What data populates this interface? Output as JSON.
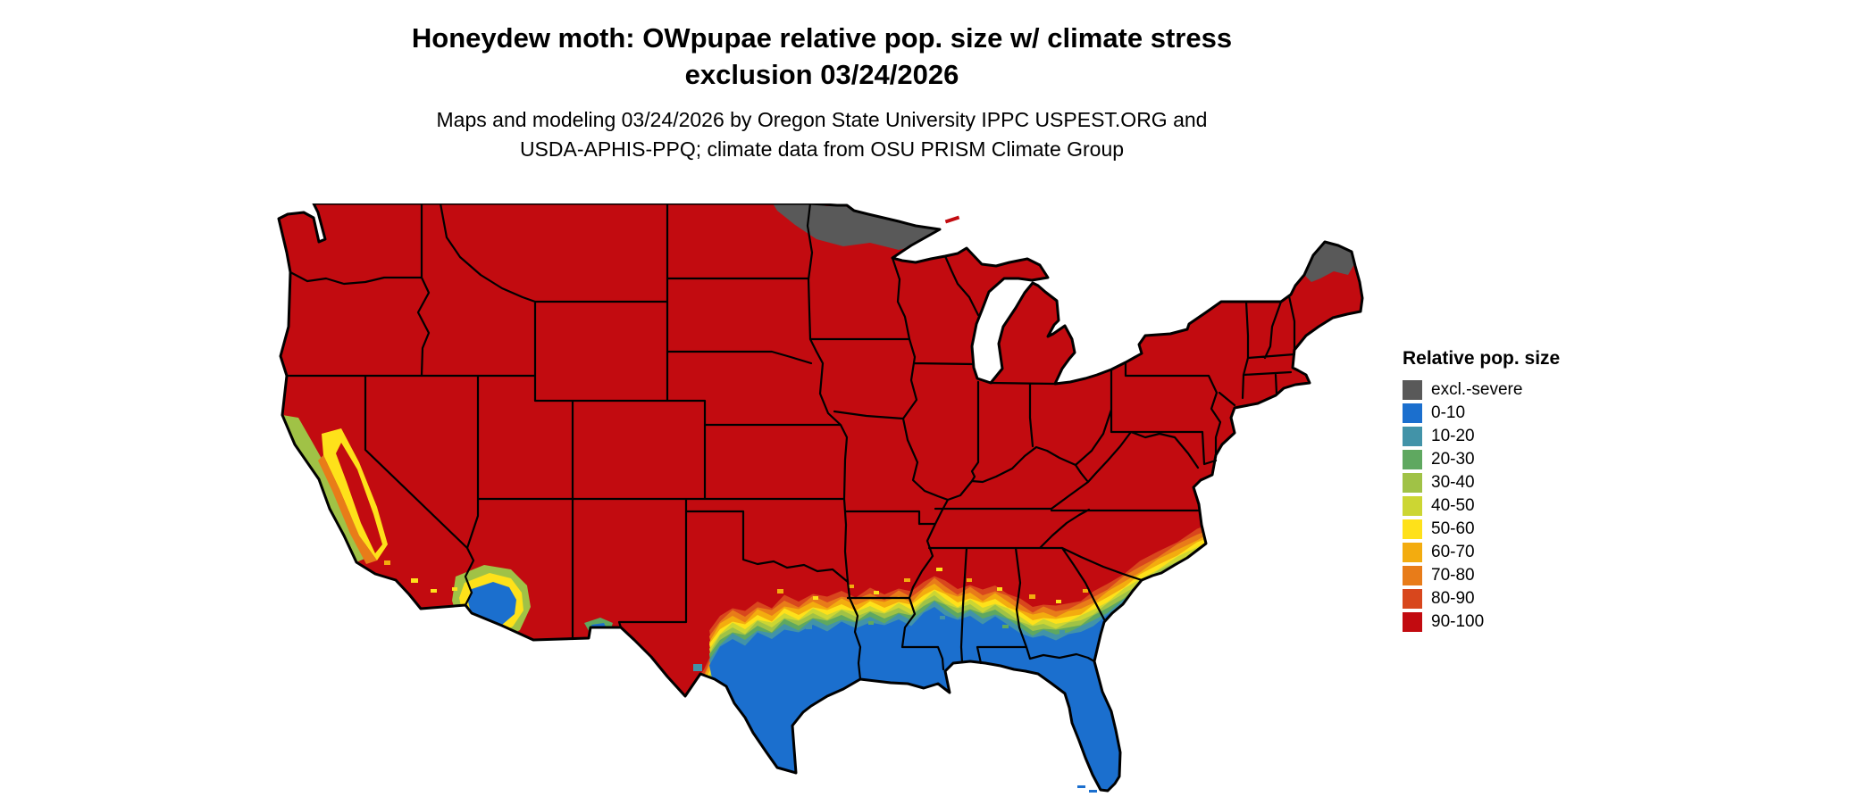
{
  "title": {
    "line1": "Honeydew moth: OWpupae relative pop. size w/ climate stress",
    "line2": "exclusion 03/24/2026"
  },
  "subtitle": {
    "line1": "Maps and modeling 03/24/2026 by Oregon State University IPPC USPEST.ORG and",
    "line2": "USDA-APHIS-PPQ; climate data from OSU PRISM Climate Group"
  },
  "legend": {
    "title": "Relative pop. size",
    "items": [
      {
        "label": "excl.-severe",
        "key": "excl"
      },
      {
        "label": "0-10",
        "key": "p0"
      },
      {
        "label": "10-20",
        "key": "p1"
      },
      {
        "label": "20-30",
        "key": "p2"
      },
      {
        "label": "30-40",
        "key": "p3"
      },
      {
        "label": "40-50",
        "key": "p4"
      },
      {
        "label": "50-60",
        "key": "p5"
      },
      {
        "label": "60-70",
        "key": "p6"
      },
      {
        "label": "70-80",
        "key": "p7"
      },
      {
        "label": "80-90",
        "key": "p8"
      },
      {
        "label": "90-100",
        "key": "p9"
      }
    ]
  },
  "map": {
    "palette": {
      "excl": "#595959",
      "p0": "#1b6fce",
      "p1": "#4293a8",
      "p2": "#5fa860",
      "p3": "#a0c246",
      "p4": "#ccd633",
      "p5": "#fee11a",
      "p6": "#f3ac0f",
      "p7": "#e87c19",
      "p8": "#d8471d",
      "p9": "#c20b10"
    }
  }
}
